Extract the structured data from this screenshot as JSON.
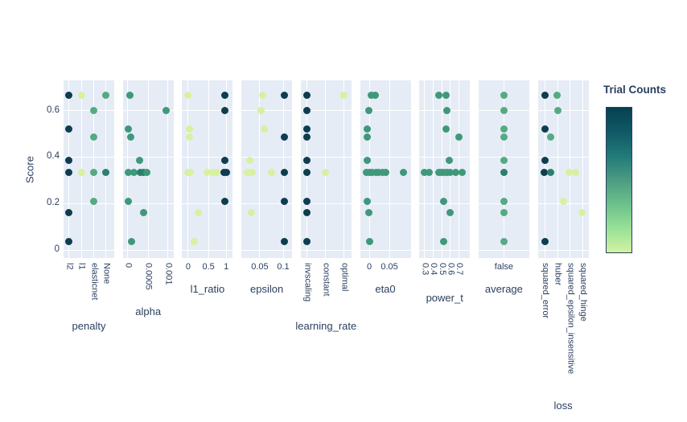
{
  "figure": {
    "bg": "#ffffff",
    "panel_bg": "#e5ecf6",
    "grid_color": "#ffffff",
    "text_color": "#2a3f5f"
  },
  "palette": {
    "dark": "#0d3d4e",
    "teal": "#2c7f6f",
    "sea": "#40987a",
    "green": "#55ab81",
    "light": "#d9f0a1"
  },
  "chart_data": {
    "type": "scatter",
    "title": "",
    "ylabel": "Score",
    "ylim": [
      -0.04,
      0.73
    ],
    "grid": true,
    "yticks": [
      {
        "label": "0",
        "value": 0
      },
      {
        "label": "0.2",
        "value": 0.2
      },
      {
        "label": "0.4",
        "value": 0.4
      },
      {
        "label": "0.6",
        "value": 0.6
      }
    ],
    "colorbar": {
      "title": "Trial Counts",
      "stops_top_to_bottom": [
        "#074050",
        "#105965",
        "#217a79",
        "#4c9b82",
        "#6cc08b",
        "#97e196",
        "#d3f2a3"
      ]
    },
    "subplots": [
      {
        "xlabel": "penalty",
        "xtype": "category",
        "tick_rotation": 90,
        "label_dy": 85,
        "ticks": [
          {
            "label": "l2",
            "f": 0.11
          },
          {
            "label": "l1",
            "f": 0.35
          },
          {
            "label": "elasticnet",
            "f": 0.6
          },
          {
            "label": "None",
            "f": 0.84
          }
        ],
        "points": [
          {
            "x": "l2",
            "f": 0.11,
            "y": 0.667,
            "c": "dark"
          },
          {
            "x": "l2",
            "f": 0.11,
            "y": 0.52,
            "c": "dark"
          },
          {
            "x": "l2",
            "f": 0.11,
            "y": 0.385,
            "c": "dark"
          },
          {
            "x": "l2",
            "f": 0.11,
            "y": 0.335,
            "c": "dark"
          },
          {
            "x": "l2",
            "f": 0.11,
            "y": 0.16,
            "c": "dark"
          },
          {
            "x": "l2",
            "f": 0.11,
            "y": 0.035,
            "c": "dark"
          },
          {
            "x": "l1",
            "f": 0.35,
            "y": 0.667,
            "c": "light"
          },
          {
            "x": "l1",
            "f": 0.35,
            "y": 0.335,
            "c": "light"
          },
          {
            "x": "elasticnet",
            "f": 0.6,
            "y": 0.6,
            "c": "green"
          },
          {
            "x": "elasticnet",
            "f": 0.6,
            "y": 0.485,
            "c": "green"
          },
          {
            "x": "elasticnet",
            "f": 0.6,
            "y": 0.335,
            "c": "green"
          },
          {
            "x": "elasticnet",
            "f": 0.6,
            "y": 0.21,
            "c": "green"
          },
          {
            "x": "None",
            "f": 0.84,
            "y": 0.667,
            "c": "green"
          },
          {
            "x": "None",
            "f": 0.84,
            "y": 0.335,
            "c": "teal"
          }
        ]
      },
      {
        "xlabel": "alpha",
        "xtype": "linear",
        "tick_rotation": 90,
        "label_dy": 67,
        "ticks": [
          {
            "label": "0",
            "f": 0.1
          },
          {
            "label": "0.0005",
            "f": 0.5
          },
          {
            "label": "0.001",
            "f": 0.89
          }
        ],
        "points": [
          {
            "x": 4e-05,
            "f": 0.132,
            "y": 0.667,
            "c": "sea"
          },
          {
            "x": 0.00096,
            "f": 0.862,
            "y": 0.6,
            "c": "sea"
          },
          {
            "x": 2e-05,
            "f": 0.116,
            "y": 0.52,
            "c": "sea"
          },
          {
            "x": 8e-05,
            "f": 0.163,
            "y": 0.485,
            "c": "sea"
          },
          {
            "x": 0.0003,
            "f": 0.338,
            "y": 0.385,
            "c": "sea"
          },
          {
            "x": 2e-05,
            "f": 0.116,
            "y": 0.335,
            "c": "sea"
          },
          {
            "x": 0.00016,
            "f": 0.227,
            "y": 0.335,
            "c": "sea"
          },
          {
            "x": 0.00032,
            "f": 0.354,
            "y": 0.335,
            "c": "teal"
          },
          {
            "x": 0.0004,
            "f": 0.417,
            "y": 0.335,
            "c": "teal"
          },
          {
            "x": 0.00048,
            "f": 0.481,
            "y": 0.335,
            "c": "sea"
          },
          {
            "x": 2e-05,
            "f": 0.116,
            "y": 0.21,
            "c": "sea"
          },
          {
            "x": 0.00038,
            "f": 0.402,
            "y": 0.16,
            "c": "sea"
          },
          {
            "x": 0.0001,
            "f": 0.179,
            "y": 0.035,
            "c": "sea"
          }
        ]
      },
      {
        "xlabel": "l1_ratio",
        "xtype": "linear",
        "tick_rotation": 0,
        "label_dy": 39,
        "ticks": [
          {
            "label": "0",
            "f": 0.12
          },
          {
            "label": "0.5",
            "f": 0.52
          },
          {
            "label": "1",
            "f": 0.87
          }
        ],
        "points": [
          {
            "x": 0,
            "f": 0.12,
            "y": 0.667,
            "c": "light"
          },
          {
            "x": 0.97,
            "f": 0.85,
            "y": 0.667,
            "c": "dark"
          },
          {
            "x": 0.97,
            "f": 0.85,
            "y": 0.6,
            "c": "dark"
          },
          {
            "x": 0.02,
            "f": 0.137,
            "y": 0.52,
            "c": "light"
          },
          {
            "x": 0.02,
            "f": 0.137,
            "y": 0.485,
            "c": "light"
          },
          {
            "x": 0.97,
            "f": 0.85,
            "y": 0.385,
            "c": "dark"
          },
          {
            "x": 0,
            "f": 0.105,
            "y": 0.335,
            "c": "light"
          },
          {
            "x": 0.05,
            "f": 0.16,
            "y": 0.335,
            "c": "light"
          },
          {
            "x": 0.5,
            "f": 0.5,
            "y": 0.335,
            "c": "light"
          },
          {
            "x": 0.62,
            "f": 0.6,
            "y": 0.335,
            "c": "light"
          },
          {
            "x": 0.72,
            "f": 0.68,
            "y": 0.335,
            "c": "light"
          },
          {
            "x": 0.92,
            "f": 0.82,
            "y": 0.335,
            "c": "dark"
          },
          {
            "x": 1,
            "f": 0.87,
            "y": 0.335,
            "c": "dark"
          },
          {
            "x": 0.97,
            "f": 0.85,
            "y": 0.21,
            "c": "dark"
          },
          {
            "x": 0.27,
            "f": 0.327,
            "y": 0.16,
            "c": "light"
          },
          {
            "x": 0.15,
            "f": 0.232,
            "y": 0.035,
            "c": "light"
          }
        ]
      },
      {
        "xlabel": "epsilon",
        "xtype": "linear",
        "tick_rotation": 0,
        "label_dy": 39,
        "ticks": [
          {
            "label": "0.05",
            "f": 0.363
          },
          {
            "label": "0.1",
            "f": 0.824
          }
        ],
        "points": [
          {
            "x": 0.057,
            "f": 0.427,
            "y": 0.667,
            "c": "light"
          },
          {
            "x": 0.103,
            "f": 0.855,
            "y": 0.667,
            "c": "dark"
          },
          {
            "x": 0.053,
            "f": 0.395,
            "y": 0.6,
            "c": "light"
          },
          {
            "x": 0.059,
            "f": 0.443,
            "y": 0.52,
            "c": "light"
          },
          {
            "x": 0.102,
            "f": 0.84,
            "y": 0.485,
            "c": "dark"
          },
          {
            "x": 0.029,
            "f": 0.173,
            "y": 0.385,
            "c": "light"
          },
          {
            "x": 0.023,
            "f": 0.11,
            "y": 0.335,
            "c": "light"
          },
          {
            "x": 0.029,
            "f": 0.173,
            "y": 0.335,
            "c": "light"
          },
          {
            "x": 0.034,
            "f": 0.22,
            "y": 0.335,
            "c": "light"
          },
          {
            "x": 0.076,
            "f": 0.6,
            "y": 0.335,
            "c": "light"
          },
          {
            "x": 0.102,
            "f": 0.84,
            "y": 0.335,
            "c": "dark"
          },
          {
            "x": 0.102,
            "f": 0.84,
            "y": 0.21,
            "c": "dark"
          },
          {
            "x": 0.032,
            "f": 0.2,
            "y": 0.16,
            "c": "light"
          },
          {
            "x": 0.102,
            "f": 0.84,
            "y": 0.035,
            "c": "dark"
          }
        ]
      },
      {
        "xlabel": "learning_rate",
        "xtype": "category",
        "tick_rotation": 90,
        "label_dy": 85,
        "ticks": [
          {
            "label": "invscaling",
            "f": 0.13
          },
          {
            "label": "constant",
            "f": 0.495
          },
          {
            "label": "optimal",
            "f": 0.86
          }
        ],
        "points": [
          {
            "x": "invscaling",
            "f": 0.13,
            "y": 0.667,
            "c": "dark"
          },
          {
            "x": "invscaling",
            "f": 0.13,
            "y": 0.6,
            "c": "dark"
          },
          {
            "x": "invscaling",
            "f": 0.13,
            "y": 0.52,
            "c": "dark"
          },
          {
            "x": "invscaling",
            "f": 0.13,
            "y": 0.485,
            "c": "dark"
          },
          {
            "x": "invscaling",
            "f": 0.13,
            "y": 0.385,
            "c": "dark"
          },
          {
            "x": "invscaling",
            "f": 0.13,
            "y": 0.335,
            "c": "dark"
          },
          {
            "x": "invscaling",
            "f": 0.13,
            "y": 0.21,
            "c": "dark"
          },
          {
            "x": "invscaling",
            "f": 0.13,
            "y": 0.16,
            "c": "dark"
          },
          {
            "x": "invscaling",
            "f": 0.13,
            "y": 0.035,
            "c": "dark"
          },
          {
            "x": "constant",
            "f": 0.495,
            "y": 0.335,
            "c": "light"
          },
          {
            "x": "optimal",
            "f": 0.86,
            "y": 0.667,
            "c": "light"
          }
        ]
      },
      {
        "xlabel": "eta0",
        "xtype": "linear",
        "tick_rotation": 0,
        "label_dy": 39,
        "ticks": [
          {
            "label": "0",
            "f": 0.183
          },
          {
            "label": "0.05",
            "f": 0.58
          }
        ],
        "points": [
          {
            "x": 0.006,
            "f": 0.23,
            "y": 0.667,
            "c": "sea"
          },
          {
            "x": 0.014,
            "f": 0.294,
            "y": 0.667,
            "c": "sea"
          },
          {
            "x": 0,
            "f": 0.167,
            "y": 0.6,
            "c": "sea"
          },
          {
            "x": 0,
            "f": 0.15,
            "y": 0.52,
            "c": "sea"
          },
          {
            "x": 0,
            "f": 0.15,
            "y": 0.485,
            "c": "sea"
          },
          {
            "x": 0,
            "f": 0.15,
            "y": 0.385,
            "c": "sea"
          },
          {
            "x": 0,
            "f": 0.12,
            "y": 0.335,
            "c": "sea"
          },
          {
            "x": 0,
            "f": 0.183,
            "y": 0.335,
            "c": "sea"
          },
          {
            "x": 0.008,
            "f": 0.246,
            "y": 0.335,
            "c": "sea"
          },
          {
            "x": 0.016,
            "f": 0.31,
            "y": 0.335,
            "c": "sea"
          },
          {
            "x": 0.024,
            "f": 0.373,
            "y": 0.335,
            "c": "sea"
          },
          {
            "x": 0.032,
            "f": 0.437,
            "y": 0.335,
            "c": "sea"
          },
          {
            "x": 0.04,
            "f": 0.5,
            "y": 0.335,
            "c": "sea"
          },
          {
            "x": 0.084,
            "f": 0.85,
            "y": 0.335,
            "c": "sea"
          },
          {
            "x": 0,
            "f": 0.15,
            "y": 0.21,
            "c": "sea"
          },
          {
            "x": 0,
            "f": 0.18,
            "y": 0.16,
            "c": "sea"
          },
          {
            "x": 0.002,
            "f": 0.198,
            "y": 0.035,
            "c": "sea"
          }
        ]
      },
      {
        "xlabel": "power_t",
        "xtype": "linear",
        "tick_rotation": 90,
        "label_dy": 50,
        "ticks": [
          {
            "label": "0.3",
            "f": 0.108
          },
          {
            "label": "0.4",
            "f": 0.278
          },
          {
            "label": "0.5",
            "f": 0.446
          },
          {
            "label": "0.6",
            "f": 0.616
          },
          {
            "label": "0.7",
            "f": 0.786
          }
        ],
        "points": [
          {
            "x": 0.46,
            "f": 0.378,
            "y": 0.667,
            "c": "sea"
          },
          {
            "x": 0.55,
            "f": 0.536,
            "y": 0.667,
            "c": "sea"
          },
          {
            "x": 0.56,
            "f": 0.552,
            "y": 0.6,
            "c": "sea"
          },
          {
            "x": 0.55,
            "f": 0.536,
            "y": 0.52,
            "c": "sea"
          },
          {
            "x": 0.69,
            "f": 0.775,
            "y": 0.485,
            "c": "sea"
          },
          {
            "x": 0.59,
            "f": 0.6,
            "y": 0.385,
            "c": "sea"
          },
          {
            "x": 0.3,
            "f": 0.108,
            "y": 0.335,
            "c": "sea"
          },
          {
            "x": 0.36,
            "f": 0.203,
            "y": 0.335,
            "c": "sea"
          },
          {
            "x": 0.46,
            "f": 0.378,
            "y": 0.335,
            "c": "sea"
          },
          {
            "x": 0.5,
            "f": 0.441,
            "y": 0.335,
            "c": "sea"
          },
          {
            "x": 0.52,
            "f": 0.489,
            "y": 0.335,
            "c": "sea"
          },
          {
            "x": 0.56,
            "f": 0.552,
            "y": 0.335,
            "c": "sea"
          },
          {
            "x": 0.6,
            "f": 0.616,
            "y": 0.335,
            "c": "sea"
          },
          {
            "x": 0.66,
            "f": 0.727,
            "y": 0.335,
            "c": "sea"
          },
          {
            "x": 0.74,
            "f": 0.854,
            "y": 0.335,
            "c": "sea"
          },
          {
            "x": 0.52,
            "f": 0.489,
            "y": 0.21,
            "c": "sea"
          },
          {
            "x": 0.6,
            "f": 0.616,
            "y": 0.16,
            "c": "sea"
          },
          {
            "x": 0.52,
            "f": 0.489,
            "y": 0.035,
            "c": "sea"
          }
        ]
      },
      {
        "xlabel": "average",
        "xtype": "category",
        "tick_rotation": 0,
        "label_dy": 39,
        "ticks": [
          {
            "label": "false",
            "f": 0.5
          }
        ],
        "points": [
          {
            "x": "false",
            "f": 0.5,
            "y": 0.667,
            "c": "green"
          },
          {
            "x": "false",
            "f": 0.5,
            "y": 0.6,
            "c": "green"
          },
          {
            "x": "false",
            "f": 0.5,
            "y": 0.52,
            "c": "green"
          },
          {
            "x": "false",
            "f": 0.5,
            "y": 0.485,
            "c": "green"
          },
          {
            "x": "false",
            "f": 0.5,
            "y": 0.385,
            "c": "green"
          },
          {
            "x": "false",
            "f": 0.5,
            "y": 0.335,
            "c": "teal"
          },
          {
            "x": "false",
            "f": 0.5,
            "y": 0.21,
            "c": "green"
          },
          {
            "x": "false",
            "f": 0.5,
            "y": 0.16,
            "c": "green"
          },
          {
            "x": "false",
            "f": 0.5,
            "y": 0.035,
            "c": "green"
          }
        ]
      },
      {
        "xlabel": "loss",
        "xtype": "category",
        "tick_rotation": 90,
        "label_dy": 184,
        "ticks": [
          {
            "label": "squared_error",
            "f": 0.14
          },
          {
            "label": "huber",
            "f": 0.39
          },
          {
            "label": "squared_epsilon_insensitive",
            "f": 0.64
          },
          {
            "label": "squared_hinge",
            "f": 0.89
          }
        ],
        "points": [
          {
            "x": "squared_error",
            "f": 0.141,
            "y": 0.667,
            "c": "dark"
          },
          {
            "x": "huber",
            "f": 0.387,
            "y": 0.667,
            "c": "green"
          },
          {
            "x": "huber",
            "f": 0.403,
            "y": 0.6,
            "c": "green"
          },
          {
            "x": "squared_error",
            "f": 0.149,
            "y": 0.52,
            "c": "dark"
          },
          {
            "x": "huber",
            "f": 0.26,
            "y": 0.485,
            "c": "green"
          },
          {
            "x": "squared_error",
            "f": 0.149,
            "y": 0.385,
            "c": "dark"
          },
          {
            "x": "squared_error",
            "f": 0.133,
            "y": 0.335,
            "c": "dark"
          },
          {
            "x": "huber",
            "f": 0.26,
            "y": 0.335,
            "c": "teal"
          },
          {
            "x": "squared_epsilon_insensitive",
            "f": 0.625,
            "y": 0.335,
            "c": "light"
          },
          {
            "x": "squared_epsilon_insensitive",
            "f": 0.752,
            "y": 0.335,
            "c": "light"
          },
          {
            "x": "squared_epsilon_insensitive",
            "f": 0.51,
            "y": 0.21,
            "c": "light"
          },
          {
            "x": "squared_hinge",
            "f": 0.879,
            "y": 0.16,
            "c": "light"
          },
          {
            "x": "squared_error",
            "f": 0.149,
            "y": 0.035,
            "c": "dark"
          }
        ]
      }
    ]
  }
}
